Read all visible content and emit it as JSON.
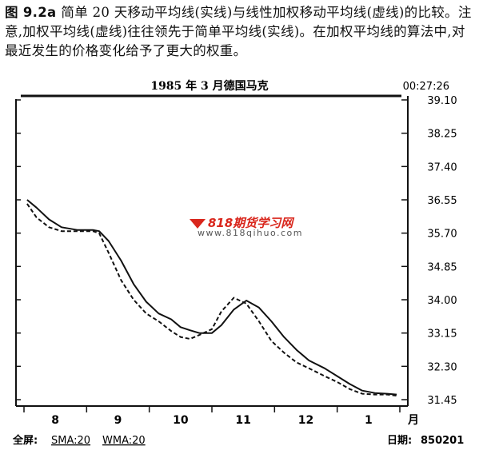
{
  "caption": {
    "figure_label": "图 9.2a",
    "text": "简单 20 天移动平均线(实线)与线性加权移动平均线(虚线)的比较。注意,加权平均线(虚线)往往领先于简单平均线(实线)。在加权平均线的算法中,对最近发生的价格变化给予了更大的权重。"
  },
  "watermark": {
    "brand": "818期货学习网",
    "url": "www.818qihuo.com"
  },
  "footer": {
    "left_label": "全屏:",
    "sma_label": "SMA:20",
    "wma_label": "WMA:20",
    "date_label": "日期:",
    "date_value": "850201"
  },
  "chart_data": {
    "type": "line",
    "title": "1985 年 3 月德国马克",
    "time_readout": "00:27:26",
    "x_unit_label": "月",
    "x_tick_labels": [
      "8",
      "9",
      "10",
      "11",
      "12",
      "1"
    ],
    "x_range": [
      0,
      6
    ],
    "ylim": [
      31.45,
      39.1
    ],
    "y_ticks": [
      39.1,
      38.25,
      37.4,
      36.55,
      35.7,
      34.85,
      34.0,
      33.15,
      32.3,
      31.45
    ],
    "grid": false,
    "series": [
      {
        "name": "SMA:20",
        "style": "solid",
        "color": "#111111",
        "points": [
          [
            0.05,
            36.55
          ],
          [
            0.2,
            36.35
          ],
          [
            0.4,
            36.05
          ],
          [
            0.6,
            35.85
          ],
          [
            0.85,
            35.78
          ],
          [
            1.1,
            35.78
          ],
          [
            1.2,
            35.75
          ],
          [
            1.35,
            35.5
          ],
          [
            1.55,
            35.0
          ],
          [
            1.75,
            34.4
          ],
          [
            1.95,
            33.95
          ],
          [
            2.15,
            33.65
          ],
          [
            2.35,
            33.5
          ],
          [
            2.5,
            33.3
          ],
          [
            2.65,
            33.22
          ],
          [
            2.8,
            33.15
          ],
          [
            3.0,
            33.15
          ],
          [
            3.15,
            33.35
          ],
          [
            3.35,
            33.75
          ],
          [
            3.55,
            33.98
          ],
          [
            3.75,
            33.8
          ],
          [
            3.95,
            33.45
          ],
          [
            4.15,
            33.05
          ],
          [
            4.35,
            32.72
          ],
          [
            4.55,
            32.45
          ],
          [
            4.8,
            32.25
          ],
          [
            5.0,
            32.05
          ],
          [
            5.2,
            31.85
          ],
          [
            5.4,
            31.68
          ],
          [
            5.6,
            31.62
          ],
          [
            5.8,
            31.6
          ],
          [
            5.95,
            31.58
          ]
        ]
      },
      {
        "name": "WMA:20",
        "style": "dashed",
        "color": "#111111",
        "points": [
          [
            0.05,
            36.45
          ],
          [
            0.2,
            36.1
          ],
          [
            0.4,
            35.85
          ],
          [
            0.6,
            35.75
          ],
          [
            0.85,
            35.75
          ],
          [
            1.1,
            35.75
          ],
          [
            1.2,
            35.7
          ],
          [
            1.35,
            35.2
          ],
          [
            1.55,
            34.5
          ],
          [
            1.75,
            34.0
          ],
          [
            1.95,
            33.65
          ],
          [
            2.15,
            33.45
          ],
          [
            2.35,
            33.2
          ],
          [
            2.5,
            33.05
          ],
          [
            2.65,
            33.0
          ],
          [
            2.8,
            33.1
          ],
          [
            3.0,
            33.25
          ],
          [
            3.15,
            33.7
          ],
          [
            3.35,
            34.05
          ],
          [
            3.55,
            33.9
          ],
          [
            3.75,
            33.45
          ],
          [
            3.95,
            32.95
          ],
          [
            4.15,
            32.65
          ],
          [
            4.35,
            32.4
          ],
          [
            4.55,
            32.25
          ],
          [
            4.8,
            32.05
          ],
          [
            5.0,
            31.9
          ],
          [
            5.2,
            31.72
          ],
          [
            5.4,
            31.6
          ],
          [
            5.6,
            31.58
          ],
          [
            5.8,
            31.58
          ],
          [
            5.95,
            31.55
          ]
        ]
      }
    ]
  }
}
